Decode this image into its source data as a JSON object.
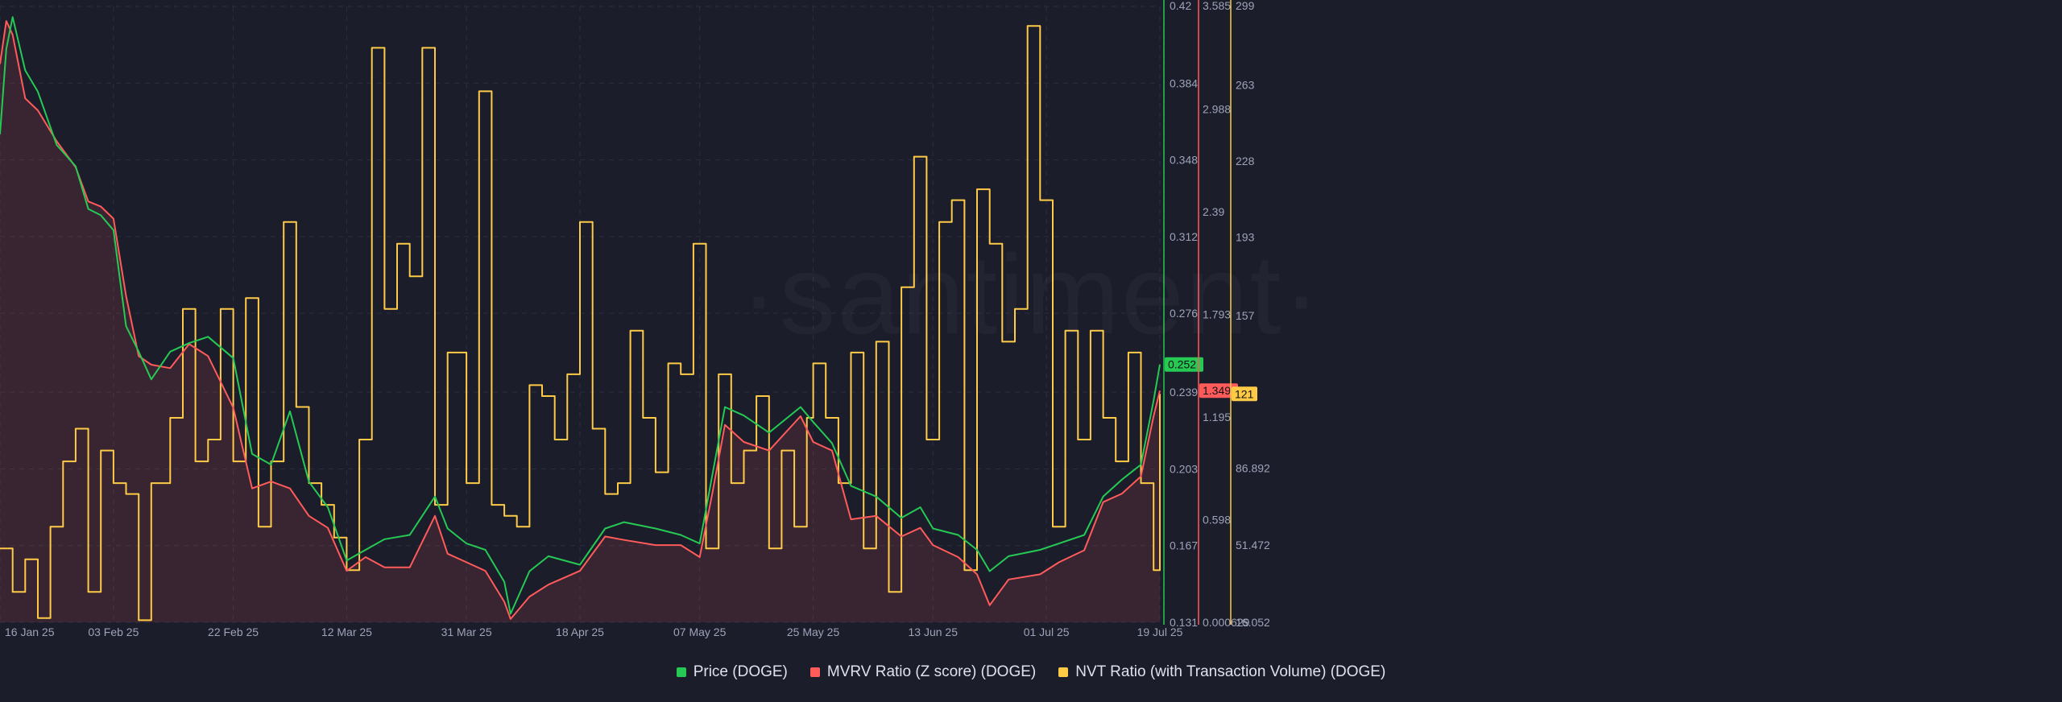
{
  "watermark": "·santiment·",
  "colors": {
    "background": "#1b1d2b",
    "grid": "#2b2e40",
    "axis_text": "#9da3b8",
    "price": "#26c953",
    "mvrv": "#ff5b5b",
    "nvt": "#ffcb47"
  },
  "legend": [
    {
      "label": "Price (DOGE)",
      "color": "#26c953"
    },
    {
      "label": "MVRV Ratio (Z score) (DOGE)",
      "color": "#ff5b5b"
    },
    {
      "label": "NVT Ratio (with Transaction Volume) (DOGE)",
      "color": "#ffcb47"
    }
  ],
  "chart_data": {
    "type": "line",
    "x_tick_labels": [
      "16 Jan 25",
      "03 Feb 25",
      "22 Feb 25",
      "12 Mar 25",
      "31 Mar 25",
      "18 Apr 25",
      "07 May 25",
      "25 May 25",
      "13 Jun 25",
      "01 Jul 25",
      "19 Jul 25"
    ],
    "x_ticks": [
      "2025-01-16",
      "2025-02-03",
      "2025-02-22",
      "2025-03-12",
      "2025-03-31",
      "2025-04-18",
      "2025-05-07",
      "2025-05-25",
      "2025-06-13",
      "2025-07-01",
      "2025-07-19"
    ],
    "x_range": [
      "2025-01-16",
      "2025-07-19"
    ],
    "grid": true,
    "legend_position": "bottom",
    "axes": [
      {
        "id": "price",
        "ticks": [
          "0.42",
          "0.384",
          "0.348",
          "0.312",
          "0.276",
          "0.239",
          "0.203",
          "0.167",
          "0.131"
        ],
        "range": [
          0.131,
          0.42
        ],
        "current_value": "0.252"
      },
      {
        "id": "mvrv",
        "ticks": [
          "3.585",
          "2.988",
          "2.39",
          "1.793",
          "1.195",
          "0.598",
          "0.000629"
        ],
        "range": [
          0.000629,
          3.585
        ],
        "current_value": "1.349"
      },
      {
        "id": "nvt",
        "ticks": [
          "299",
          "263",
          "228",
          "193",
          "157",
          "121",
          "86.892",
          "51.472",
          "16.052"
        ],
        "range": [
          16.052,
          299
        ],
        "current_value": "121"
      }
    ],
    "series": [
      {
        "name": "Price (DOGE)",
        "axis": "price",
        "points": [
          [
            "2025-01-16",
            0.36
          ],
          [
            "2025-01-17",
            0.4
          ],
          [
            "2025-01-18",
            0.415
          ],
          [
            "2025-01-20",
            0.39
          ],
          [
            "2025-01-22",
            0.38
          ],
          [
            "2025-01-25",
            0.355
          ],
          [
            "2025-01-28",
            0.345
          ],
          [
            "2025-01-30",
            0.325
          ],
          [
            "2025-02-01",
            0.322
          ],
          [
            "2025-02-03",
            0.315
          ],
          [
            "2025-02-05",
            0.27
          ],
          [
            "2025-02-07",
            0.258
          ],
          [
            "2025-02-09",
            0.245
          ],
          [
            "2025-02-12",
            0.258
          ],
          [
            "2025-02-15",
            0.262
          ],
          [
            "2025-02-18",
            0.265
          ],
          [
            "2025-02-22",
            0.255
          ],
          [
            "2025-02-25",
            0.21
          ],
          [
            "2025-02-28",
            0.205
          ],
          [
            "2025-03-03",
            0.23
          ],
          [
            "2025-03-06",
            0.197
          ],
          [
            "2025-03-09",
            0.185
          ],
          [
            "2025-03-12",
            0.16
          ],
          [
            "2025-03-15",
            0.165
          ],
          [
            "2025-03-18",
            0.17
          ],
          [
            "2025-03-22",
            0.172
          ],
          [
            "2025-03-26",
            0.19
          ],
          [
            "2025-03-28",
            0.175
          ],
          [
            "2025-03-31",
            0.168
          ],
          [
            "2025-04-03",
            0.165
          ],
          [
            "2025-04-06",
            0.15
          ],
          [
            "2025-04-07",
            0.135
          ],
          [
            "2025-04-10",
            0.155
          ],
          [
            "2025-04-13",
            0.162
          ],
          [
            "2025-04-18",
            0.158
          ],
          [
            "2025-04-22",
            0.175
          ],
          [
            "2025-04-25",
            0.178
          ],
          [
            "2025-04-30",
            0.175
          ],
          [
            "2025-05-04",
            0.172
          ],
          [
            "2025-05-07",
            0.168
          ],
          [
            "2025-05-09",
            0.2
          ],
          [
            "2025-05-11",
            0.232
          ],
          [
            "2025-05-14",
            0.228
          ],
          [
            "2025-05-18",
            0.22
          ],
          [
            "2025-05-23",
            0.232
          ],
          [
            "2025-05-25",
            0.225
          ],
          [
            "2025-05-28",
            0.215
          ],
          [
            "2025-05-31",
            0.195
          ],
          [
            "2025-06-04",
            0.19
          ],
          [
            "2025-06-08",
            0.18
          ],
          [
            "2025-06-11",
            0.185
          ],
          [
            "2025-06-13",
            0.175
          ],
          [
            "2025-06-17",
            0.172
          ],
          [
            "2025-06-20",
            0.165
          ],
          [
            "2025-06-22",
            0.155
          ],
          [
            "2025-06-25",
            0.162
          ],
          [
            "2025-06-30",
            0.165
          ],
          [
            "2025-07-03",
            0.168
          ],
          [
            "2025-07-07",
            0.172
          ],
          [
            "2025-07-10",
            0.19
          ],
          [
            "2025-07-13",
            0.198
          ],
          [
            "2025-07-16",
            0.205
          ],
          [
            "2025-07-18",
            0.235
          ],
          [
            "2025-07-19",
            0.252
          ]
        ]
      },
      {
        "name": "MVRV Ratio (Z score) (DOGE)",
        "axis": "mvrv",
        "points": [
          [
            "2025-01-16",
            3.25
          ],
          [
            "2025-01-17",
            3.5
          ],
          [
            "2025-01-18",
            3.42
          ],
          [
            "2025-01-20",
            3.05
          ],
          [
            "2025-01-22",
            2.98
          ],
          [
            "2025-01-25",
            2.8
          ],
          [
            "2025-01-28",
            2.65
          ],
          [
            "2025-01-30",
            2.45
          ],
          [
            "2025-02-01",
            2.42
          ],
          [
            "2025-02-03",
            2.35
          ],
          [
            "2025-02-05",
            1.9
          ],
          [
            "2025-02-07",
            1.55
          ],
          [
            "2025-02-09",
            1.5
          ],
          [
            "2025-02-12",
            1.48
          ],
          [
            "2025-02-15",
            1.62
          ],
          [
            "2025-02-18",
            1.55
          ],
          [
            "2025-02-22",
            1.25
          ],
          [
            "2025-02-25",
            0.78
          ],
          [
            "2025-02-28",
            0.82
          ],
          [
            "2025-03-03",
            0.78
          ],
          [
            "2025-03-06",
            0.62
          ],
          [
            "2025-03-09",
            0.55
          ],
          [
            "2025-03-12",
            0.3
          ],
          [
            "2025-03-15",
            0.38
          ],
          [
            "2025-03-18",
            0.32
          ],
          [
            "2025-03-22",
            0.32
          ],
          [
            "2025-03-26",
            0.62
          ],
          [
            "2025-03-28",
            0.4
          ],
          [
            "2025-03-31",
            0.35
          ],
          [
            "2025-04-03",
            0.3
          ],
          [
            "2025-04-06",
            0.12
          ],
          [
            "2025-04-07",
            0.02
          ],
          [
            "2025-04-10",
            0.15
          ],
          [
            "2025-04-13",
            0.22
          ],
          [
            "2025-04-18",
            0.3
          ],
          [
            "2025-04-22",
            0.5
          ],
          [
            "2025-04-25",
            0.48
          ],
          [
            "2025-04-30",
            0.45
          ],
          [
            "2025-05-04",
            0.45
          ],
          [
            "2025-05-07",
            0.38
          ],
          [
            "2025-05-09",
            0.75
          ],
          [
            "2025-05-11",
            1.15
          ],
          [
            "2025-05-14",
            1.05
          ],
          [
            "2025-05-18",
            1.0
          ],
          [
            "2025-05-23",
            1.2
          ],
          [
            "2025-05-25",
            1.05
          ],
          [
            "2025-05-28",
            1.0
          ],
          [
            "2025-05-31",
            0.6
          ],
          [
            "2025-06-04",
            0.62
          ],
          [
            "2025-06-08",
            0.5
          ],
          [
            "2025-06-11",
            0.55
          ],
          [
            "2025-06-13",
            0.45
          ],
          [
            "2025-06-17",
            0.38
          ],
          [
            "2025-06-20",
            0.28
          ],
          [
            "2025-06-22",
            0.1
          ],
          [
            "2025-06-25",
            0.25
          ],
          [
            "2025-06-30",
            0.28
          ],
          [
            "2025-07-03",
            0.35
          ],
          [
            "2025-07-07",
            0.42
          ],
          [
            "2025-07-10",
            0.7
          ],
          [
            "2025-07-13",
            0.75
          ],
          [
            "2025-07-16",
            0.85
          ],
          [
            "2025-07-18",
            1.2
          ],
          [
            "2025-07-19",
            1.349
          ]
        ]
      },
      {
        "name": "NVT Ratio (with Transaction Volume) (DOGE)",
        "axis": "nvt",
        "points": [
          [
            "2025-01-16",
            50
          ],
          [
            "2025-01-18",
            30
          ],
          [
            "2025-01-20",
            45
          ],
          [
            "2025-01-22",
            18
          ],
          [
            "2025-01-24",
            60
          ],
          [
            "2025-01-26",
            90
          ],
          [
            "2025-01-28",
            105
          ],
          [
            "2025-01-30",
            30
          ],
          [
            "2025-02-01",
            95
          ],
          [
            "2025-02-03",
            80
          ],
          [
            "2025-02-05",
            75
          ],
          [
            "2025-02-07",
            17
          ],
          [
            "2025-02-09",
            80
          ],
          [
            "2025-02-12",
            110
          ],
          [
            "2025-02-14",
            160
          ],
          [
            "2025-02-16",
            90
          ],
          [
            "2025-02-18",
            100
          ],
          [
            "2025-02-20",
            160
          ],
          [
            "2025-02-22",
            90
          ],
          [
            "2025-02-24",
            165
          ],
          [
            "2025-02-26",
            60
          ],
          [
            "2025-02-28",
            90
          ],
          [
            "2025-03-02",
            200
          ],
          [
            "2025-03-04",
            115
          ],
          [
            "2025-03-06",
            80
          ],
          [
            "2025-03-08",
            70
          ],
          [
            "2025-03-10",
            55
          ],
          [
            "2025-03-12",
            40
          ],
          [
            "2025-03-14",
            100
          ],
          [
            "2025-03-16",
            280
          ],
          [
            "2025-03-18",
            160
          ],
          [
            "2025-03-20",
            190
          ],
          [
            "2025-03-22",
            175
          ],
          [
            "2025-03-24",
            280
          ],
          [
            "2025-03-26",
            70
          ],
          [
            "2025-03-28",
            140
          ],
          [
            "2025-03-31",
            80
          ],
          [
            "2025-04-02",
            260
          ],
          [
            "2025-04-04",
            70
          ],
          [
            "2025-04-06",
            65
          ],
          [
            "2025-04-08",
            60
          ],
          [
            "2025-04-10",
            125
          ],
          [
            "2025-04-12",
            120
          ],
          [
            "2025-04-14",
            100
          ],
          [
            "2025-04-16",
            130
          ],
          [
            "2025-04-18",
            200
          ],
          [
            "2025-04-20",
            105
          ],
          [
            "2025-04-22",
            75
          ],
          [
            "2025-04-24",
            80
          ],
          [
            "2025-04-26",
            150
          ],
          [
            "2025-04-28",
            110
          ],
          [
            "2025-04-30",
            85
          ],
          [
            "2025-05-02",
            135
          ],
          [
            "2025-05-04",
            130
          ],
          [
            "2025-05-06",
            190
          ],
          [
            "2025-05-08",
            50
          ],
          [
            "2025-05-10",
            130
          ],
          [
            "2025-05-12",
            80
          ],
          [
            "2025-05-14",
            95
          ],
          [
            "2025-05-16",
            120
          ],
          [
            "2025-05-18",
            50
          ],
          [
            "2025-05-20",
            95
          ],
          [
            "2025-05-22",
            60
          ],
          [
            "2025-05-24",
            110
          ],
          [
            "2025-05-25",
            135
          ],
          [
            "2025-05-27",
            110
          ],
          [
            "2025-05-29",
            80
          ],
          [
            "2025-05-31",
            140
          ],
          [
            "2025-06-02",
            50
          ],
          [
            "2025-06-04",
            145
          ],
          [
            "2025-06-06",
            30
          ],
          [
            "2025-06-08",
            170
          ],
          [
            "2025-06-10",
            230
          ],
          [
            "2025-06-12",
            100
          ],
          [
            "2025-06-14",
            200
          ],
          [
            "2025-06-16",
            210
          ],
          [
            "2025-06-18",
            40
          ],
          [
            "2025-06-20",
            215
          ],
          [
            "2025-06-22",
            190
          ],
          [
            "2025-06-24",
            145
          ],
          [
            "2025-06-26",
            160
          ],
          [
            "2025-06-28",
            290
          ],
          [
            "2025-06-30",
            210
          ],
          [
            "2025-07-02",
            60
          ],
          [
            "2025-07-04",
            150
          ],
          [
            "2025-07-06",
            100
          ],
          [
            "2025-07-08",
            150
          ],
          [
            "2025-07-10",
            110
          ],
          [
            "2025-07-12",
            90
          ],
          [
            "2025-07-14",
            140
          ],
          [
            "2025-07-16",
            80
          ],
          [
            "2025-07-18",
            40
          ],
          [
            "2025-07-19",
            121
          ]
        ]
      }
    ]
  }
}
